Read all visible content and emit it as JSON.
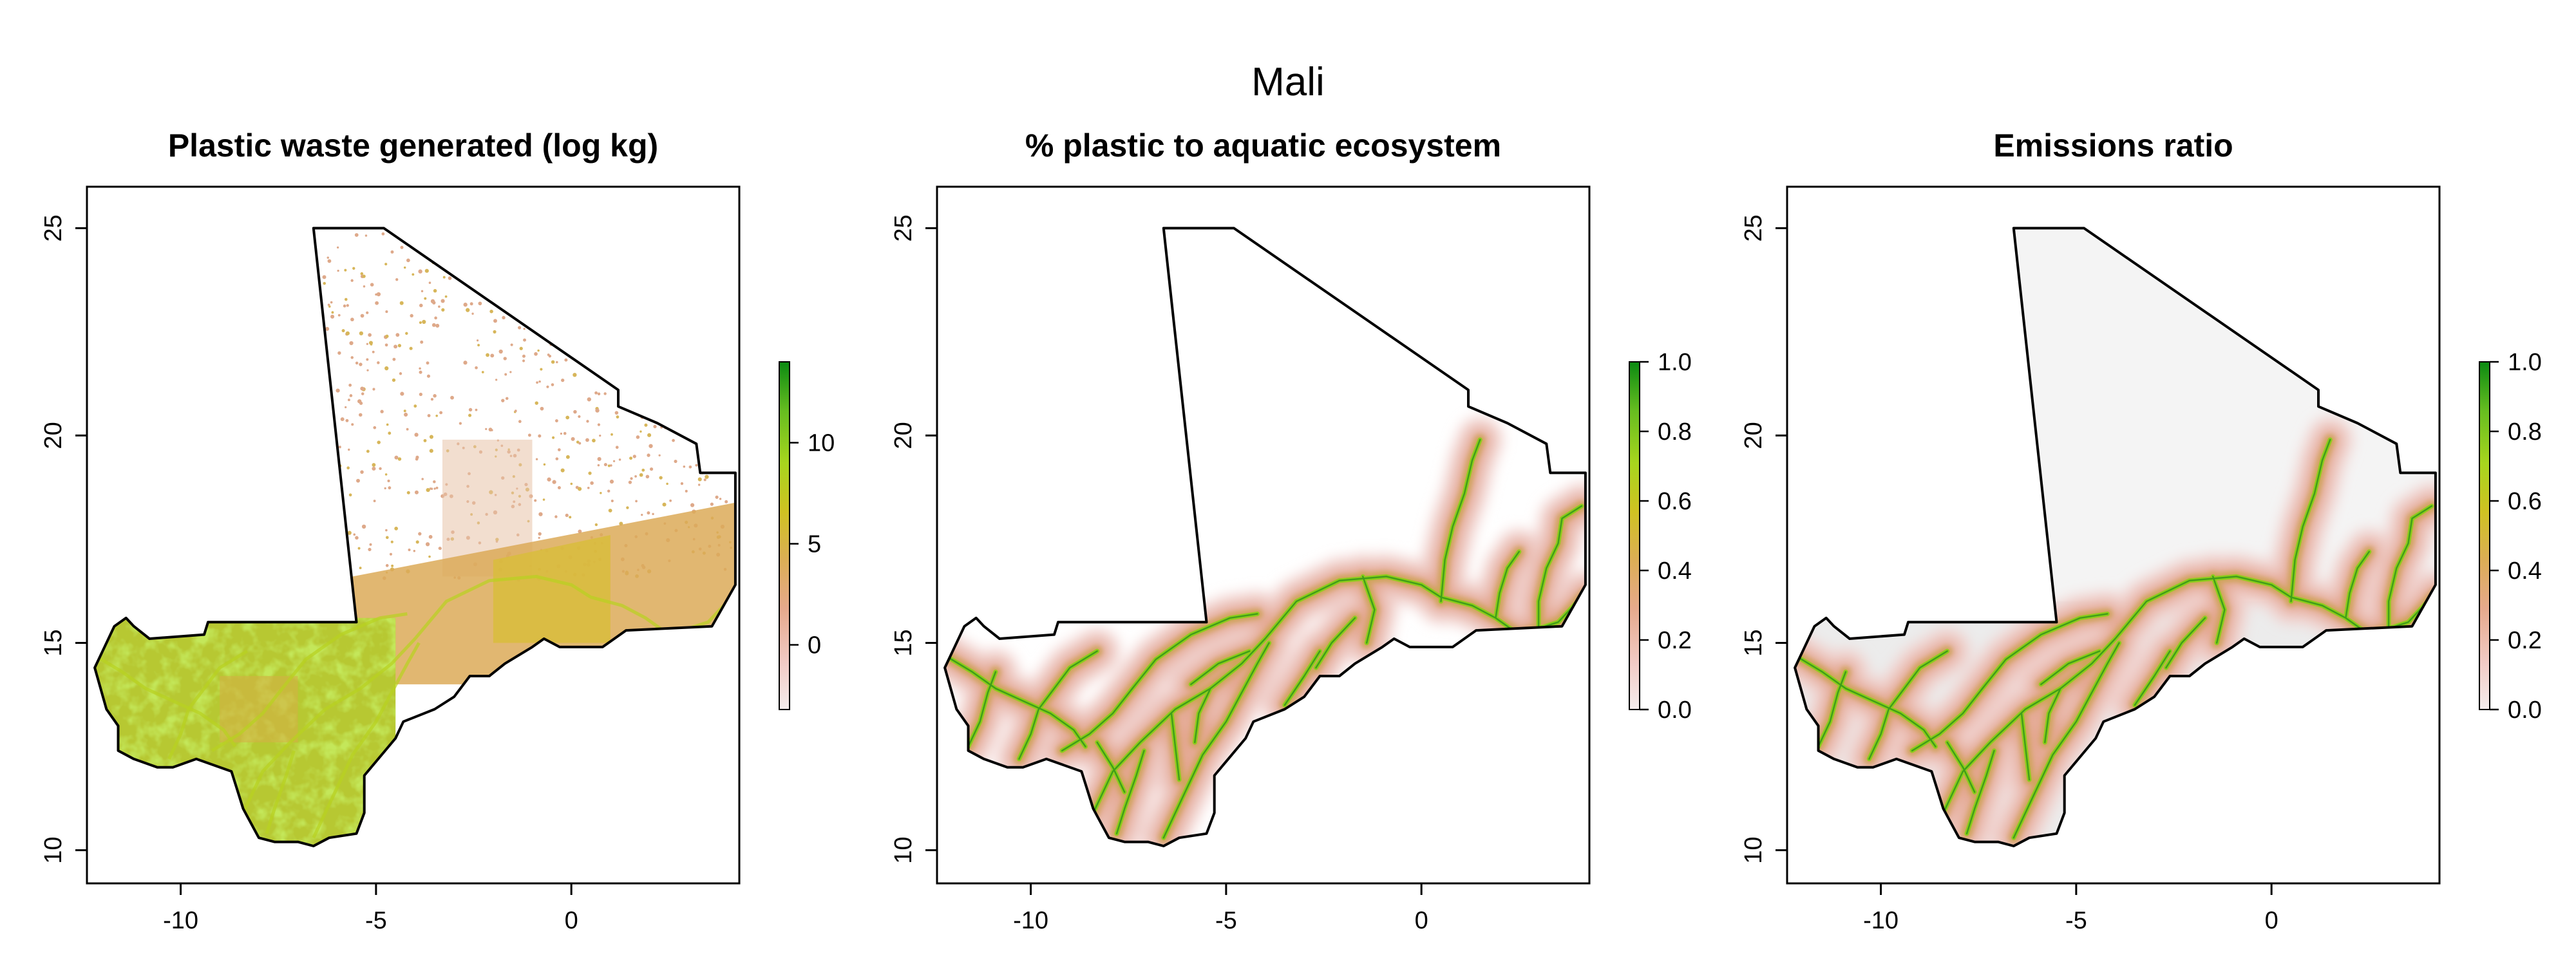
{
  "figure": {
    "title": "Mali"
  },
  "colors": {
    "frame": "#000000",
    "border": "#000000",
    "background": "#ffffff",
    "nodata_gray": "#ececec",
    "ramp": [
      "#f5eded",
      "#f1c9c3",
      "#e6a98c",
      "#dcae55",
      "#cfc222",
      "#a7d51e",
      "#66bd20",
      "#0b8a12"
    ]
  },
  "map_data": {
    "country": "Mali",
    "lon_range": [
      -12.4,
      4.3
    ],
    "lat_range": [
      9.2,
      26.0
    ],
    "border_lonlat": [
      [
        -6.6,
        25.0
      ],
      [
        -4.8,
        25.0
      ],
      [
        1.2,
        21.1
      ],
      [
        1.2,
        20.7
      ],
      [
        2.2,
        20.3
      ],
      [
        3.2,
        19.8
      ],
      [
        3.3,
        19.1
      ],
      [
        4.2,
        19.1
      ],
      [
        4.2,
        16.4
      ],
      [
        3.6,
        15.4
      ],
      [
        1.4,
        15.3
      ],
      [
        0.8,
        14.9
      ],
      [
        0.2,
        14.9
      ],
      [
        -0.3,
        14.9
      ],
      [
        -0.7,
        15.1
      ],
      [
        -1.0,
        14.9
      ],
      [
        -1.7,
        14.5
      ],
      [
        -2.1,
        14.2
      ],
      [
        -2.6,
        14.2
      ],
      [
        -3.0,
        13.7
      ],
      [
        -3.5,
        13.4
      ],
      [
        -4.3,
        13.1
      ],
      [
        -4.5,
        12.7
      ],
      [
        -5.3,
        11.8
      ],
      [
        -5.3,
        10.9
      ],
      [
        -5.5,
        10.4
      ],
      [
        -6.2,
        10.3
      ],
      [
        -6.6,
        10.1
      ],
      [
        -7.0,
        10.2
      ],
      [
        -7.6,
        10.2
      ],
      [
        -8.0,
        10.3
      ],
      [
        -8.4,
        11.0
      ],
      [
        -8.7,
        11.9
      ],
      [
        -9.6,
        12.2
      ],
      [
        -10.2,
        12.0
      ],
      [
        -10.6,
        12.0
      ],
      [
        -11.2,
        12.2
      ],
      [
        -11.6,
        12.4
      ],
      [
        -11.6,
        13.0
      ],
      [
        -11.9,
        13.4
      ],
      [
        -12.2,
        14.4
      ],
      [
        -12.0,
        14.8
      ],
      [
        -11.7,
        15.4
      ],
      [
        -11.4,
        15.6
      ],
      [
        -11.2,
        15.4
      ],
      [
        -10.8,
        15.1
      ],
      [
        -9.4,
        15.2
      ],
      [
        -9.3,
        15.5
      ],
      [
        -5.5,
        15.5
      ],
      [
        -6.6,
        25.0
      ]
    ],
    "rivers_lonlat": [
      [
        [
          -12.2,
          14.7
        ],
        [
          -11.5,
          14.3
        ],
        [
          -10.9,
          13.9
        ],
        [
          -10.2,
          13.6
        ],
        [
          -9.5,
          13.3
        ],
        [
          -8.9,
          12.9
        ],
        [
          -8.6,
          12.5
        ]
      ],
      [
        [
          -8.4,
          10.9
        ],
        [
          -7.9,
          11.9
        ],
        [
          -7.2,
          12.6
        ],
        [
          -6.3,
          13.4
        ],
        [
          -5.4,
          13.9
        ],
        [
          -4.6,
          14.5
        ],
        [
          -4.0,
          15.1
        ],
        [
          -3.2,
          16.0
        ],
        [
          -2.1,
          16.5
        ],
        [
          -0.9,
          16.6
        ],
        [
          0.0,
          16.4
        ],
        [
          0.5,
          16.1
        ],
        [
          1.3,
          15.9
        ],
        [
          1.9,
          15.6
        ],
        [
          2.5,
          15.2
        ],
        [
          3.5,
          15.5
        ],
        [
          4.2,
          16.2
        ]
      ],
      [
        [
          -6.6,
          10.3
        ],
        [
          -6.1,
          11.3
        ],
        [
          -5.6,
          12.3
        ],
        [
          -5.0,
          13.1
        ],
        [
          -4.6,
          13.8
        ],
        [
          -4.2,
          14.5
        ],
        [
          -3.9,
          15.0
        ]
      ],
      [
        [
          -7.8,
          10.4
        ],
        [
          -7.6,
          11.0
        ],
        [
          -7.3,
          11.8
        ],
        [
          -7.1,
          12.4
        ]
      ],
      [
        [
          -9.2,
          12.4
        ],
        [
          -8.5,
          12.8
        ],
        [
          -7.9,
          13.3
        ],
        [
          -7.4,
          13.9
        ],
        [
          -6.8,
          14.6
        ],
        [
          -5.9,
          15.2
        ],
        [
          -4.9,
          15.6
        ],
        [
          -4.2,
          15.7
        ]
      ],
      [
        [
          -10.3,
          12.2
        ],
        [
          -10.0,
          12.8
        ],
        [
          -9.8,
          13.4
        ],
        [
          -9.4,
          13.9
        ],
        [
          -9.0,
          14.4
        ],
        [
          -8.3,
          14.8
        ]
      ],
      [
        [
          -11.6,
          12.5
        ],
        [
          -11.3,
          13.1
        ],
        [
          -11.1,
          13.8
        ],
        [
          -10.9,
          14.3
        ]
      ],
      [
        [
          -5.9,
          14.0
        ],
        [
          -5.2,
          14.5
        ],
        [
          -4.4,
          14.8
        ]
      ],
      [
        [
          0.5,
          16.0
        ],
        [
          0.6,
          17.0
        ],
        [
          0.8,
          17.8
        ],
        [
          1.1,
          18.6
        ],
        [
          1.3,
          19.4
        ],
        [
          1.5,
          19.9
        ]
      ],
      [
        [
          3.0,
          15.3
        ],
        [
          3.0,
          16.0
        ],
        [
          3.2,
          16.8
        ],
        [
          3.5,
          17.4
        ],
        [
          3.6,
          18.0
        ],
        [
          4.1,
          18.3
        ]
      ],
      [
        [
          1.9,
          15.6
        ],
        [
          2.0,
          16.2
        ],
        [
          2.2,
          16.8
        ],
        [
          2.5,
          17.2
        ]
      ],
      [
        [
          -1.5,
          16.6
        ],
        [
          -1.2,
          15.8
        ],
        [
          -1.4,
          15.0
        ]
      ],
      [
        [
          -2.7,
          14.4
        ],
        [
          -2.3,
          15.0
        ],
        [
          -1.7,
          15.6
        ]
      ],
      [
        [
          -3.5,
          13.5
        ],
        [
          -3.0,
          14.2
        ],
        [
          -2.6,
          14.8
        ]
      ],
      [
        [
          -8.3,
          12.6
        ],
        [
          -7.9,
          12.0
        ],
        [
          -7.6,
          11.4
        ]
      ],
      [
        [
          -6.4,
          13.3
        ],
        [
          -6.3,
          12.5
        ],
        [
          -6.2,
          11.7
        ]
      ],
      [
        [
          -5.4,
          13.9
        ],
        [
          -5.7,
          13.3
        ],
        [
          -5.8,
          12.6
        ]
      ]
    ]
  },
  "panels": [
    {
      "id": "waste",
      "title": "Plastic waste generated (log kg)",
      "mode": "waste",
      "x_ticks": [
        "-10",
        "-5",
        "0"
      ],
      "x_tick_values": [
        -10,
        -5,
        0
      ],
      "y_ticks": [
        "10",
        "15",
        "20",
        "25"
      ],
      "y_tick_values": [
        10,
        15,
        20,
        25
      ],
      "colorbar": {
        "min": -3.2,
        "max": 14,
        "ticks": [
          "0",
          "5",
          "10"
        ],
        "tick_values": [
          0,
          5,
          10
        ]
      }
    },
    {
      "id": "aquatic",
      "title": "% plastic to aquatic ecosystem",
      "mode": "aquatic",
      "x_ticks": [
        "-10",
        "-5",
        "0"
      ],
      "x_tick_values": [
        -10,
        -5,
        0
      ],
      "y_ticks": [
        "10",
        "15",
        "20",
        "25"
      ],
      "y_tick_values": [
        10,
        15,
        20,
        25
      ],
      "colorbar": {
        "min": 0,
        "max": 1,
        "ticks": [
          "0.0",
          "0.2",
          "0.4",
          "0.6",
          "0.8",
          "1.0"
        ],
        "tick_values": [
          0,
          0.2,
          0.4,
          0.6,
          0.8,
          1.0
        ]
      }
    },
    {
      "id": "emissions",
      "title": "Emissions ratio",
      "mode": "emissions",
      "x_ticks": [
        "-10",
        "-5",
        "0"
      ],
      "x_tick_values": [
        -10,
        -5,
        0
      ],
      "y_ticks": [
        "10",
        "15",
        "20",
        "25"
      ],
      "y_tick_values": [
        10,
        15,
        20,
        25
      ],
      "colorbar": {
        "min": 0,
        "max": 1,
        "ticks": [
          "0.0",
          "0.2",
          "0.4",
          "0.6",
          "0.8",
          "1.0"
        ],
        "tick_values": [
          0,
          0.2,
          0.4,
          0.6,
          0.8,
          1.0
        ]
      }
    }
  ]
}
